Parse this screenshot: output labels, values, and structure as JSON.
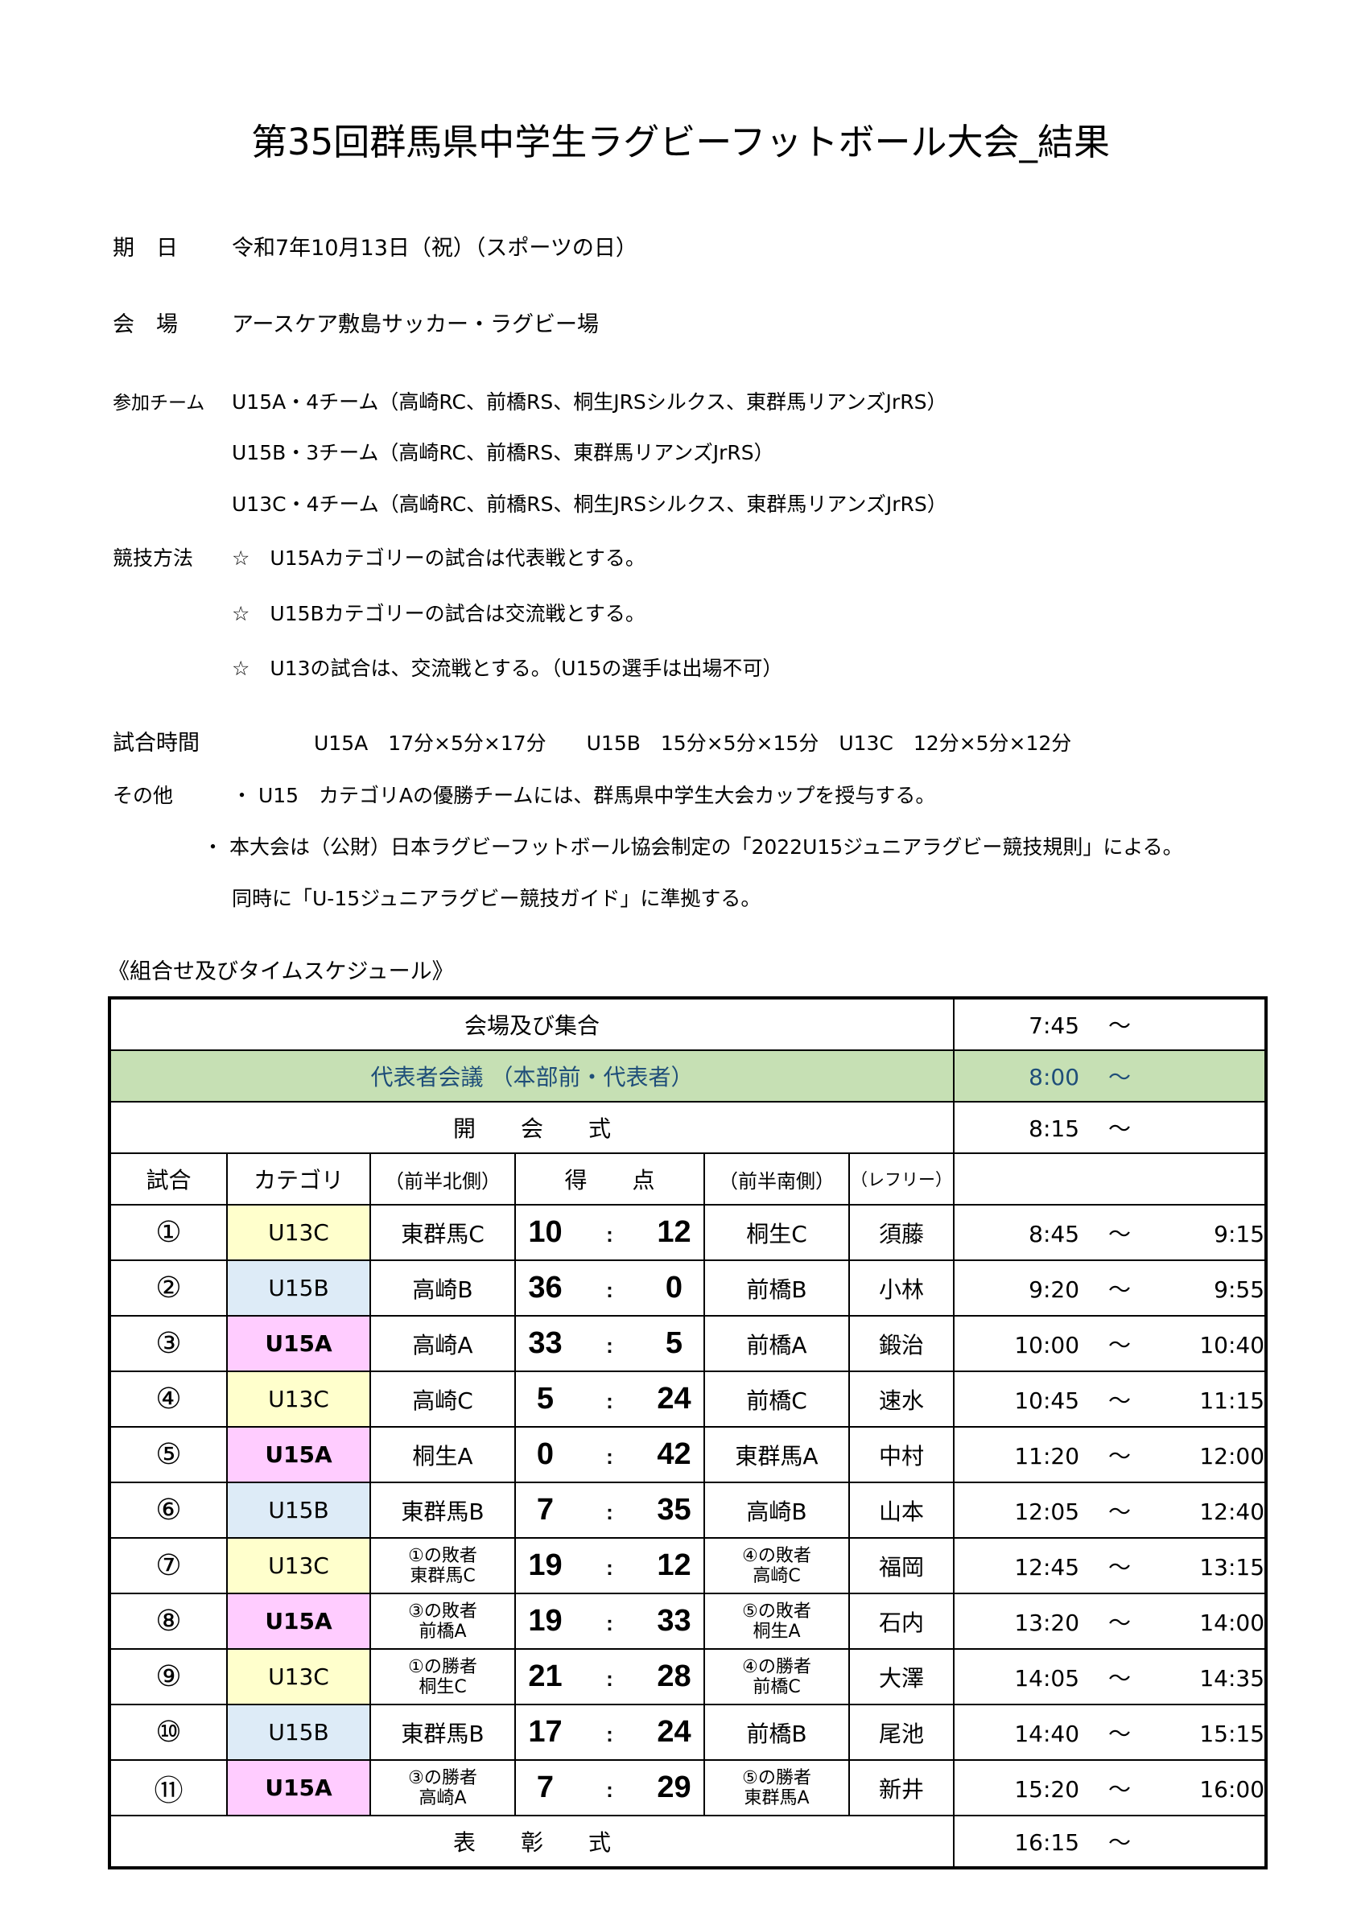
{
  "title": "第35回群馬県中学生ラグビーフットボール大会_結果",
  "info": {
    "date_label": "期　日",
    "date": "令和7年10月13日（祝）（スポーツの日）",
    "venue_label": "会　場",
    "venue": "アースケア敷島サッカー・ラグビー場",
    "teams_label": "参加チーム",
    "teams": [
      "U15A・4チーム（高崎RC、前橋RS、桐生JRSシルクス、東群馬リアンズJrRS）",
      "U15B・3チーム（高崎RC、前橋RS、東群馬リアンズJrRS）",
      "U13C・4チーム（高崎RC、前橋RS、桐生JRSシルクス、東群馬リアンズJrRS）"
    ],
    "method_label": "競技方法",
    "methods": [
      "☆　U15Aカテゴリーの試合は代表戦とする。",
      "☆　U15Bカテゴリーの試合は交流戦とする。",
      "☆　U13の試合は、交流戦とする。（U15の選手は出場不可）"
    ],
    "time_label": "試合時間",
    "time": "U15A　17分×5分×17分　　U15B　15分×5分×15分　U13C　12分×5分×12分",
    "other_label": "その他",
    "others": [
      "・ U15　カテゴリAの優勝チームには、群馬県中学生大会カップを授与する。",
      "・ 本大会は（公財）日本ラグビーフットボール協会制定の「2022U15ジュニアラグビー競技規則」による。",
      "同時に「U-15ジュニアラグビー競技ガイド」に準拠する。"
    ]
  },
  "schedule_heading": "《組合せ及びタイムスケジュール》",
  "table": {
    "pre": [
      {
        "label": "会場及び集合",
        "time": "7:45",
        "tilde": "〜"
      },
      {
        "label": "代表者会議 （本部前・代表者）",
        "time": "8:00",
        "tilde": "〜"
      },
      {
        "label": "開　　会　　式",
        "time": "8:15",
        "tilde": "〜"
      }
    ],
    "headers": [
      "試合",
      "カテゴリ",
      "（前半北側）",
      "得　　点",
      "（前半南側）",
      "（レフリー）",
      ""
    ],
    "matches": [
      {
        "no": "①",
        "cat": "U13C",
        "north": [
          "東群馬C"
        ],
        "s1": "10",
        "s2": "12",
        "south": [
          "桐生C"
        ],
        "ref": "須藤",
        "start": "8:45",
        "end": "9:15"
      },
      {
        "no": "②",
        "cat": "U15B",
        "north": [
          "高崎B"
        ],
        "s1": "36",
        "s2": "0",
        "south": [
          "前橋B"
        ],
        "ref": "小林",
        "start": "9:20",
        "end": "9:55"
      },
      {
        "no": "③",
        "cat": "U15A",
        "north": [
          "高崎A"
        ],
        "s1": "33",
        "s2": "5",
        "south": [
          "前橋A"
        ],
        "ref": "鍛治",
        "start": "10:00",
        "end": "10:40"
      },
      {
        "no": "④",
        "cat": "U13C",
        "north": [
          "高崎C"
        ],
        "s1": "5",
        "s2": "24",
        "south": [
          "前橋C"
        ],
        "ref": "速水",
        "start": "10:45",
        "end": "11:15"
      },
      {
        "no": "⑤",
        "cat": "U15A",
        "north": [
          "桐生A"
        ],
        "s1": "0",
        "s2": "42",
        "south": [
          "東群馬A"
        ],
        "ref": "中村",
        "start": "11:20",
        "end": "12:00"
      },
      {
        "no": "⑥",
        "cat": "U15B",
        "north": [
          "東群馬B"
        ],
        "s1": "7",
        "s2": "35",
        "south": [
          "高崎B"
        ],
        "ref": "山本",
        "start": "12:05",
        "end": "12:40"
      },
      {
        "no": "⑦",
        "cat": "U13C",
        "north": [
          "①の敗者",
          "東群馬C"
        ],
        "s1": "19",
        "s2": "12",
        "south": [
          "④の敗者",
          "高崎C"
        ],
        "ref": "福岡",
        "start": "12:45",
        "end": "13:15"
      },
      {
        "no": "⑧",
        "cat": "U15A",
        "north": [
          "③の敗者",
          "前橋A"
        ],
        "s1": "19",
        "s2": "33",
        "south": [
          "⑤の敗者",
          "桐生A"
        ],
        "ref": "石内",
        "start": "13:20",
        "end": "14:00"
      },
      {
        "no": "⑨",
        "cat": "U13C",
        "north": [
          "①の勝者",
          "桐生C"
        ],
        "s1": "21",
        "s2": "28",
        "south": [
          "④の勝者",
          "前橋C"
        ],
        "ref": "大澤",
        "start": "14:05",
        "end": "14:35"
      },
      {
        "no": "⑩",
        "cat": "U15B",
        "north": [
          "東群馬B"
        ],
        "s1": "17",
        "s2": "24",
        "south": [
          "前橋B"
        ],
        "ref": "尾池",
        "start": "14:40",
        "end": "15:15"
      },
      {
        "no": "⑪",
        "cat": "U15A",
        "north": [
          "③の勝者",
          "高崎A"
        ],
        "s1": "7",
        "s2": "29",
        "south": [
          "⑤の勝者",
          "東群馬A"
        ],
        "ref": "新井",
        "start": "15:20",
        "end": "16:00"
      }
    ],
    "post": {
      "label": "表　　彰　　式",
      "time": "16:15",
      "tilde": "〜"
    },
    "colon": ":",
    "tilde": "〜"
  },
  "colors": {
    "meeting_bg": "#c6e0b4",
    "meeting_text": "#1f4e79",
    "U13C": "#ffffcc",
    "U15B": "#ddebf7",
    "U15A": "#ffccff"
  }
}
